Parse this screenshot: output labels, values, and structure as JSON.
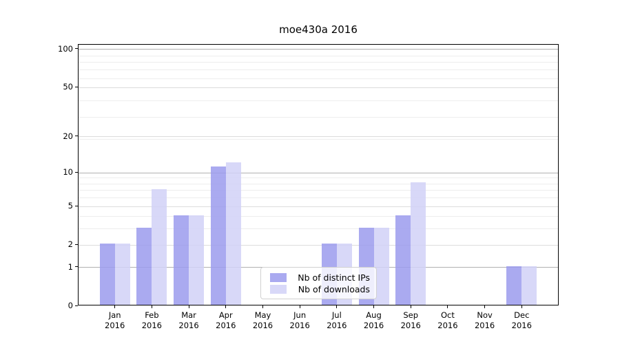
{
  "title": "moe430a 2016",
  "chart_data": {
    "type": "bar",
    "title": "moe430a 2016",
    "months": [
      "Jan",
      "Feb",
      "Mar",
      "Apr",
      "May",
      "Jun",
      "Jul",
      "Aug",
      "Sep",
      "Oct",
      "Nov",
      "Dec"
    ],
    "year": "2016",
    "series": [
      {
        "name": "Nb of distinct IPs",
        "color": "#aaaaf0",
        "values": [
          2,
          3,
          4,
          11,
          0,
          0,
          2,
          3,
          4,
          0,
          0,
          1
        ]
      },
      {
        "name": "Nb of downloads",
        "color": "#d8d8f8",
        "values": [
          2,
          7,
          4,
          12,
          0,
          0,
          2,
          3,
          8,
          0,
          0,
          1
        ]
      }
    ],
    "y_ticks": [
      0,
      1,
      2,
      5,
      10,
      20,
      50,
      100
    ],
    "ylim": [
      0,
      109
    ],
    "yscale": "log10(1+x)",
    "xlabel": "",
    "ylabel": "",
    "grid": true,
    "legend_position": "lower center inside plot"
  }
}
